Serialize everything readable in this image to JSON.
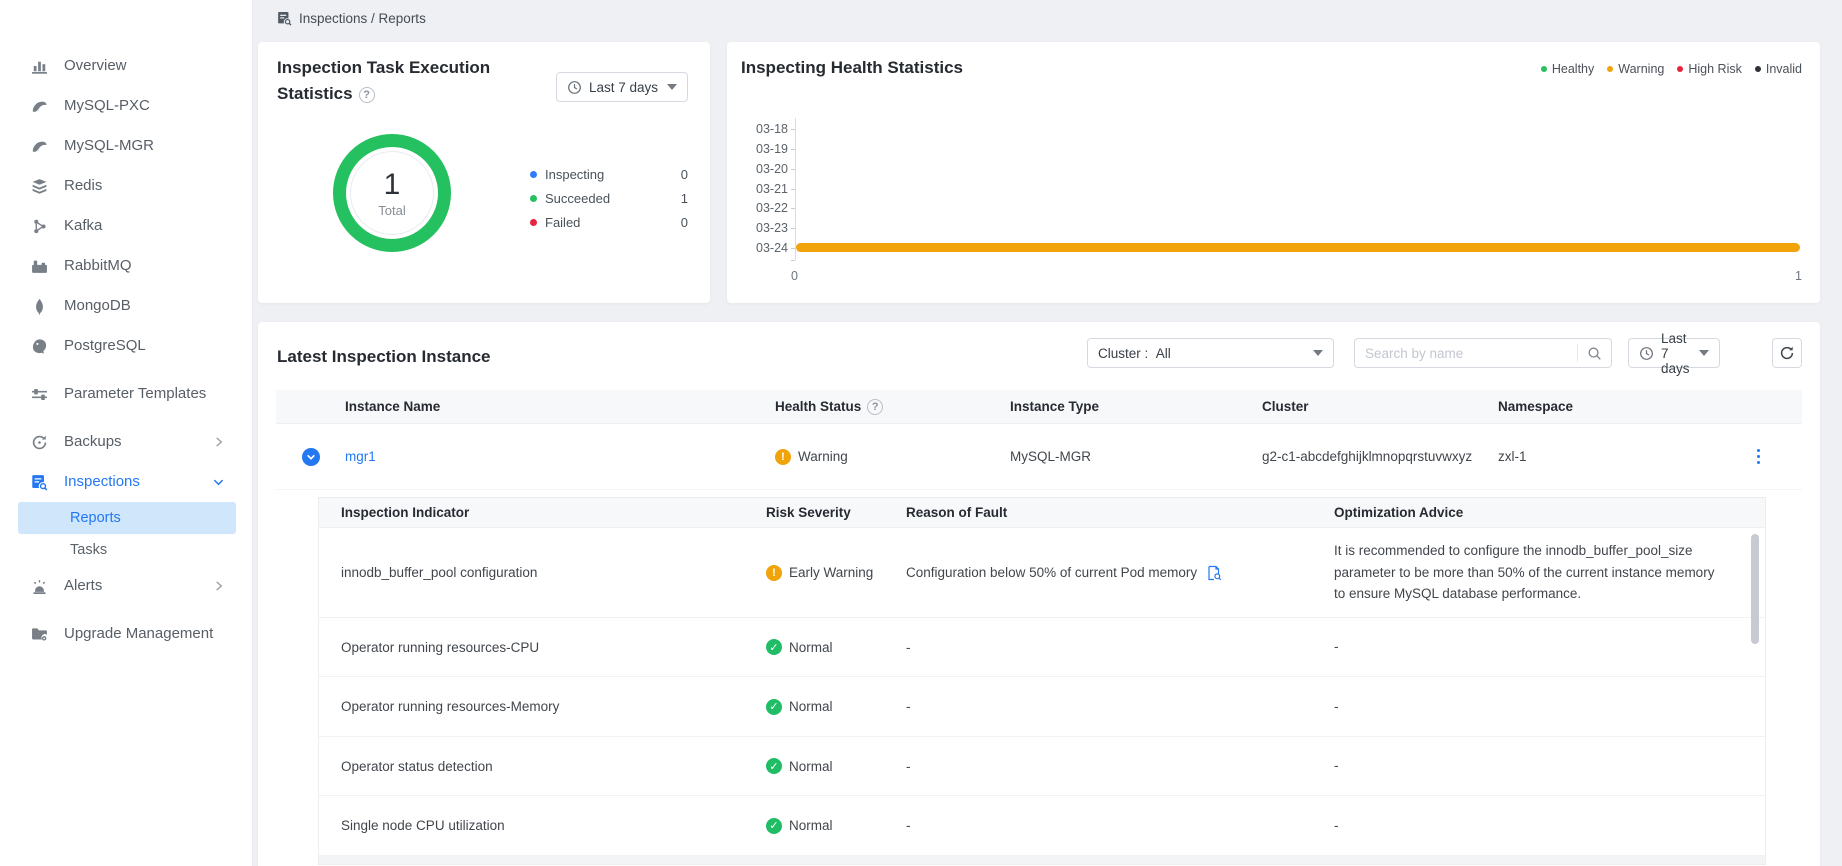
{
  "breadcrumb": {
    "label": "Inspections / Reports"
  },
  "sidebar": {
    "items": [
      {
        "label": "Overview"
      },
      {
        "label": "MySQL-PXC"
      },
      {
        "label": "MySQL-MGR"
      },
      {
        "label": "Redis"
      },
      {
        "label": "Kafka"
      },
      {
        "label": "RabbitMQ"
      },
      {
        "label": "MongoDB"
      },
      {
        "label": "PostgreSQL"
      },
      {
        "label": "Parameter Templates"
      },
      {
        "label": "Backups"
      },
      {
        "label": "Inspections"
      },
      {
        "label": "Reports"
      },
      {
        "label": "Tasks"
      },
      {
        "label": "Alerts"
      },
      {
        "label": "Upgrade Management"
      }
    ]
  },
  "task_stats_card": {
    "title": "Inspection Task Execution Statistics",
    "time_range": "Last 7 days"
  },
  "health_card": {
    "title": "Inspecting Health Statistics"
  },
  "chart_data": [
    {
      "type": "pie",
      "title": "Inspection Task Execution Statistics",
      "total": 1,
      "total_label": "Total",
      "series": [
        {
          "name": "Inspecting",
          "value": 0,
          "color": "#2f7cf6"
        },
        {
          "name": "Succeeded",
          "value": 1,
          "color": "#25c05f"
        },
        {
          "name": "Failed",
          "value": 0,
          "color": "#e5243f"
        }
      ],
      "legend_position": "right"
    },
    {
      "type": "bar",
      "orientation": "horizontal",
      "title": "Inspecting Health Statistics",
      "categories": [
        "03-18",
        "03-19",
        "03-20",
        "03-21",
        "03-22",
        "03-23",
        "03-24"
      ],
      "series": [
        {
          "name": "Healthy",
          "color": "#25c05f",
          "values": [
            0,
            0,
            0,
            0,
            0,
            0,
            0
          ]
        },
        {
          "name": "Warning",
          "color": "#f0a30a",
          "values": [
            0,
            0,
            0,
            0,
            0,
            0,
            1
          ]
        },
        {
          "name": "High Risk",
          "color": "#e8243c",
          "values": [
            0,
            0,
            0,
            0,
            0,
            0,
            0
          ]
        },
        {
          "name": "Invalid",
          "color": "#2f3338",
          "values": [
            0,
            0,
            0,
            0,
            0,
            0,
            0
          ]
        }
      ],
      "xlim": [
        0,
        1
      ],
      "x_ticks": [
        "0",
        "1"
      ],
      "grid": false,
      "legend_position": "top-right"
    }
  ],
  "instances": {
    "title": "Latest Inspection Instance",
    "filters": {
      "cluster_label": "Cluster :",
      "cluster_value": "All",
      "search_placeholder": "Search by name",
      "time_range": "Last 7 days"
    },
    "columns": [
      "Instance Name",
      "Health Status",
      "Instance Type",
      "Cluster",
      "Namespace"
    ],
    "row": {
      "instance_name": "mgr1",
      "health_status": "Warning",
      "instance_type": "MySQL-MGR",
      "cluster": "g2-c1-abcdefghijklmnopqrstuvwxyz",
      "namespace": "zxl-1"
    },
    "detail": {
      "columns": [
        "Inspection Indicator",
        "Risk Severity",
        "Reason of Fault",
        "Optimization Advice"
      ],
      "rows": [
        {
          "indicator": "innodb_buffer_pool configuration",
          "severity": "Early Warning",
          "severity_level": "warning",
          "reason": "Configuration below 50% of current Pod memory",
          "advice": "It is recommended to configure the innodb_buffer_pool_size parameter to be more than 50% of the current instance memory to ensure MySQL database performance."
        },
        {
          "indicator": "Operator running resources-CPU",
          "severity": "Normal",
          "severity_level": "normal",
          "reason": "-",
          "advice": "-"
        },
        {
          "indicator": "Operator running resources-Memory",
          "severity": "Normal",
          "severity_level": "normal",
          "reason": "-",
          "advice": "-"
        },
        {
          "indicator": "Operator status detection",
          "severity": "Normal",
          "severity_level": "normal",
          "reason": "-",
          "advice": "-"
        },
        {
          "indicator": "Single node CPU utilization",
          "severity": "Normal",
          "severity_level": "normal",
          "reason": "-",
          "advice": "-"
        }
      ]
    }
  },
  "colors": {
    "accent_blue": "#2478f2",
    "healthy_green": "#25c05f",
    "warning_orange": "#f0a30a",
    "high_risk_red": "#e8243c",
    "invalid_dark": "#2f3338",
    "selected_nav_bg": "#cfe6fb"
  }
}
